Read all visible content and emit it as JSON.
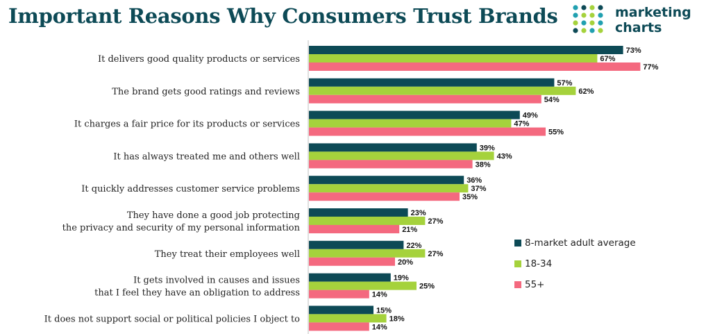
{
  "title": "Important Reasons Why Consumers Trust Brands",
  "logo": {
    "line1": "marketing",
    "line2": "charts",
    "icon": "dot-grid-logo-icon",
    "dot_colors": [
      "#0d4a56",
      "#21a0b0",
      "#a5d23c"
    ]
  },
  "colors": {
    "title": "#0d4a56",
    "axis": "#bfbfbf"
  },
  "chart_data": {
    "type": "bar",
    "orientation": "horizontal",
    "title": "Important Reasons Why Consumers Trust Brands",
    "value_suffix": "%",
    "xlim": [
      0,
      80
    ],
    "grid": false,
    "legend_position": "right",
    "categories": [
      "It delivers good quality products or services",
      "The brand gets good ratings and reviews",
      "It charges a fair price for its products or services",
      "It has always treated me and others well",
      "It quickly addresses customer service problems",
      "They have done a good job protecting\nthe privacy and security of my personal information",
      "They treat their employees well",
      "It gets involved in causes and issues\nthat I feel they have an obligation to address",
      "It does not support social or political policies I object to"
    ],
    "series": [
      {
        "name": "8-market adult average",
        "color": "#0d4a56",
        "values": [
          73,
          57,
          49,
          39,
          36,
          23,
          22,
          19,
          15
        ]
      },
      {
        "name": "18-34",
        "color": "#a5d23c",
        "values": [
          67,
          62,
          47,
          43,
          37,
          27,
          27,
          25,
          18
        ]
      },
      {
        "name": "55+",
        "color": "#f4697f",
        "values": [
          77,
          54,
          55,
          38,
          35,
          21,
          20,
          14,
          14
        ]
      }
    ]
  }
}
